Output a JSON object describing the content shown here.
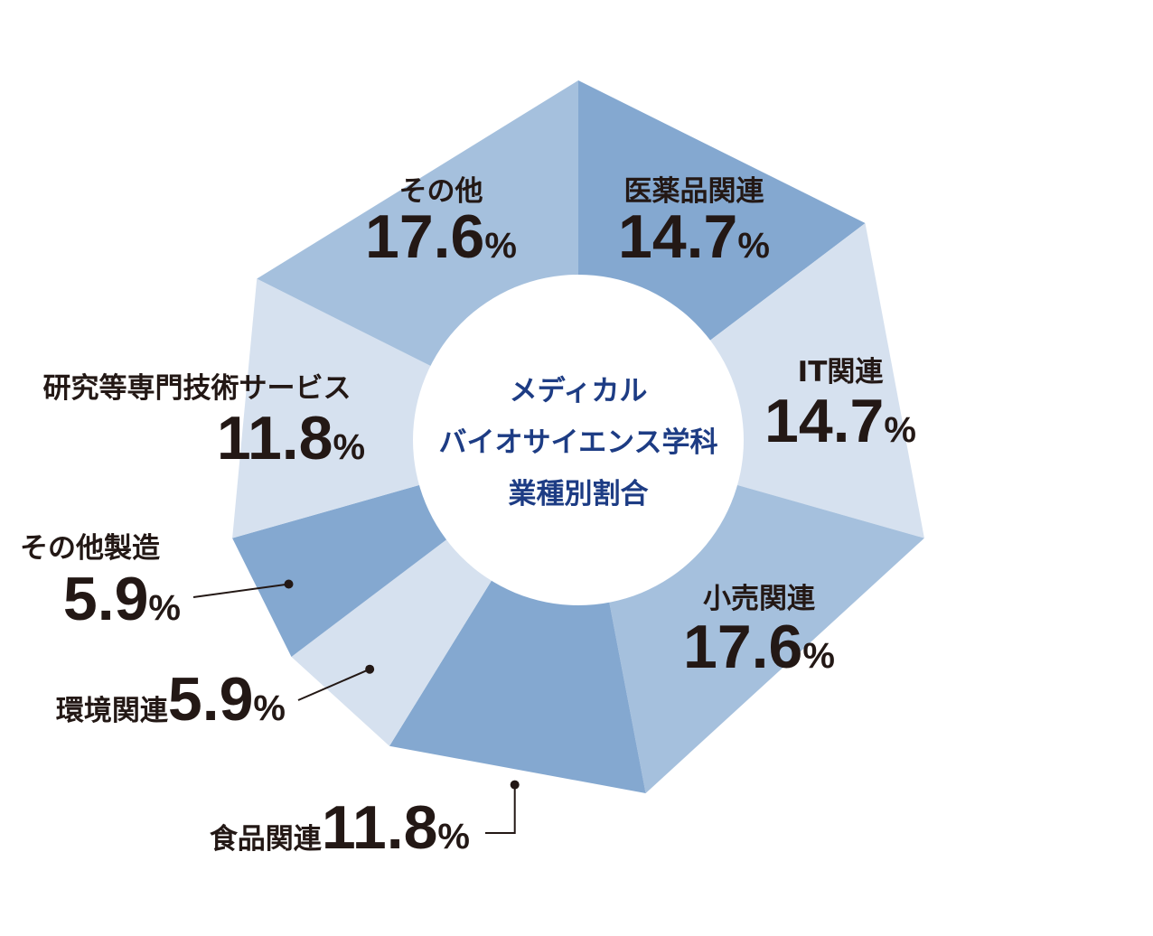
{
  "chart_data": {
    "type": "pie",
    "variant": "donut",
    "title_lines": [
      "メディカル",
      "バイオサイエンス学科",
      "業種別割合"
    ],
    "unit": "%",
    "categories": [
      "医薬品関連",
      "IT関連",
      "小売関連",
      "食品関連",
      "環境関連",
      "その他製造",
      "研究等専門技術サービス",
      "その他"
    ],
    "values": [
      14.7,
      14.7,
      17.6,
      11.8,
      5.9,
      5.9,
      11.8,
      17.6
    ],
    "value_labels": [
      "14.7",
      "14.7",
      "17.6",
      "11.8",
      "5.9",
      "5.9",
      "11.8",
      "17.6"
    ],
    "colors": [
      "#84a8d0",
      "#d6e1ef",
      "#a5c0dd",
      "#84a8d0",
      "#d6e1ef",
      "#84a8d0",
      "#d6e1ef",
      "#a5c0dd"
    ],
    "title_color": "#1d3c84",
    "text_color": "#231815",
    "legend": "none"
  }
}
